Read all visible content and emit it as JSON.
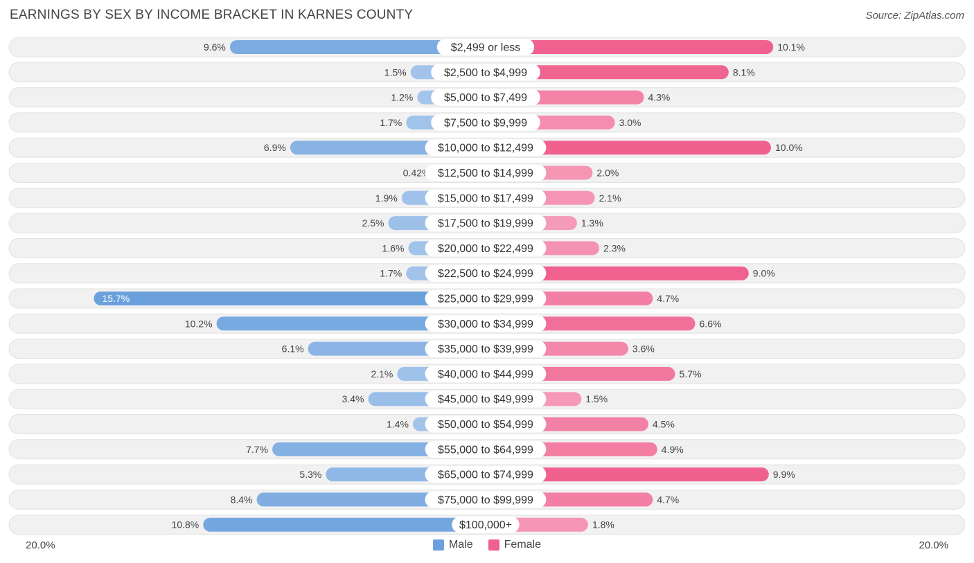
{
  "title": "EARNINGS BY SEX BY INCOME BRACKET IN KARNES COUNTY",
  "source": "Source: ZipAtlas.com",
  "colors": {
    "male": "#6aa0dc",
    "male_light": "#a9c8ec",
    "female": "#f0618f",
    "female_light": "#f6a5c0",
    "row_bg": "#f1f1f1"
  },
  "chart_data": {
    "type": "bar",
    "orientation": "horizontal-diverging",
    "title": "EARNINGS BY SEX BY INCOME BRACKET IN KARNES COUNTY",
    "axis_max": 20.0,
    "axis_left_label": "20.0%",
    "axis_right_label": "20.0%",
    "categories": [
      "$2,499 or less",
      "$2,500 to $4,999",
      "$5,000 to $7,499",
      "$7,500 to $9,999",
      "$10,000 to $12,499",
      "$12,500 to $14,999",
      "$15,000 to $17,499",
      "$17,500 to $19,999",
      "$20,000 to $22,499",
      "$22,500 to $24,999",
      "$25,000 to $29,999",
      "$30,000 to $34,999",
      "$35,000 to $39,999",
      "$40,000 to $44,999",
      "$45,000 to $49,999",
      "$50,000 to $54,999",
      "$55,000 to $64,999",
      "$65,000 to $74,999",
      "$75,000 to $99,999",
      "$100,000+"
    ],
    "series": [
      {
        "name": "Male",
        "values": [
          9.6,
          1.5,
          1.2,
          1.7,
          6.9,
          0.42,
          1.9,
          2.5,
          1.6,
          1.7,
          15.7,
          10.2,
          6.1,
          2.1,
          3.4,
          1.4,
          7.7,
          5.3,
          8.4,
          10.8
        ],
        "labels": [
          "9.6%",
          "1.5%",
          "1.2%",
          "1.7%",
          "6.9%",
          "0.42%",
          "1.9%",
          "2.5%",
          "1.6%",
          "1.7%",
          "15.7%",
          "10.2%",
          "6.1%",
          "2.1%",
          "3.4%",
          "1.4%",
          "7.7%",
          "5.3%",
          "8.4%",
          "10.8%"
        ]
      },
      {
        "name": "Female",
        "values": [
          10.1,
          8.1,
          4.3,
          3.0,
          10.0,
          2.0,
          2.1,
          1.3,
          2.3,
          9.0,
          4.7,
          6.6,
          3.6,
          5.7,
          1.5,
          4.5,
          4.9,
          9.9,
          4.7,
          1.8
        ],
        "labels": [
          "10.1%",
          "8.1%",
          "4.3%",
          "3.0%",
          "10.0%",
          "2.0%",
          "2.1%",
          "1.3%",
          "2.3%",
          "9.0%",
          "4.7%",
          "6.6%",
          "3.6%",
          "5.7%",
          "1.5%",
          "4.5%",
          "4.9%",
          "9.9%",
          "4.7%",
          "1.8%"
        ]
      }
    ],
    "legend": [
      "Male",
      "Female"
    ],
    "legend_position": "bottom-center"
  }
}
